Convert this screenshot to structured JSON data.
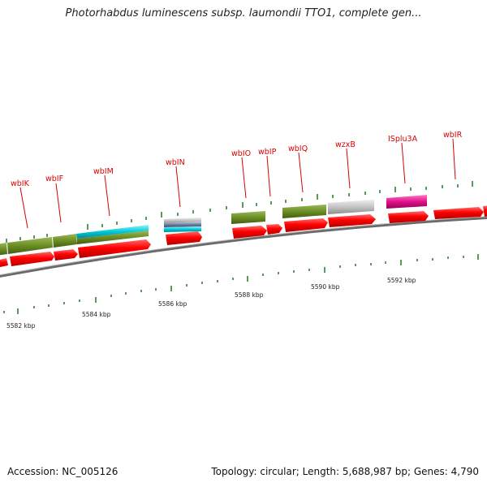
{
  "title": "Photorhabdus luminescens subsp. laumondii TTO1, complete gen...",
  "accession_text": "Accession: NC_005126",
  "summary_text": "Topology: circular; Length: 5,688,987 bp; Genes: 4,790",
  "colors": {
    "backbone": "#808080",
    "cds": "#ff0000",
    "olive": "#6b8e23",
    "cyan": "#00c8d8",
    "gray": "#c0c0c0",
    "slate": "#7080a0",
    "magenta": "#e0108a",
    "tick": "#1e7a1e",
    "label": "#d60000"
  },
  "gene_labels": [
    "wbIK",
    "wbIF",
    "wbIM",
    "wbIN",
    "wbIO",
    "wbIP",
    "wbIQ",
    "wzxB",
    "ISplu3A",
    "wbIR"
  ],
  "scale_labels": [
    "5582 kbp",
    "5584 kbp",
    "5586 kbp",
    "5588 kbp",
    "5590 kbp",
    "5592 kbp"
  ]
}
